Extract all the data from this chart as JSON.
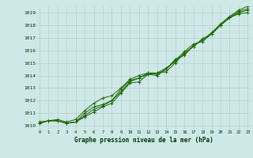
{
  "title": "Graphe pression niveau de la mer (hPa)",
  "ylabel_ticks": [
    1010,
    1011,
    1012,
    1013,
    1014,
    1015,
    1016,
    1017,
    1018,
    1019
  ],
  "xlim": [
    -0.3,
    23.3
  ],
  "ylim": [
    1009.7,
    1019.5
  ],
  "bg_color": "#cee8e8",
  "grid_color": "#b0c8c8",
  "line_color": "#1a6600",
  "series": [
    [
      1010.2,
      1010.4,
      1010.4,
      1010.2,
      1010.3,
      1010.7,
      1011.1,
      1011.5,
      1011.8,
      1012.6,
      1013.4,
      1013.5,
      1014.1,
      1014.2,
      1014.3,
      1015.0,
      1015.8,
      1016.3,
      1016.9,
      1017.3,
      1018.0,
      1018.6,
      1018.9,
      1019.0
    ],
    [
      1010.2,
      1010.4,
      1010.4,
      1010.2,
      1010.3,
      1011.0,
      1011.5,
      1011.7,
      1012.0,
      1012.9,
      1013.6,
      1013.8,
      1014.1,
      1014.0,
      1014.5,
      1015.2,
      1015.9,
      1016.5,
      1016.7,
      1017.3,
      1018.0,
      1018.6,
      1019.1,
      1019.3
    ],
    [
      1010.3,
      1010.4,
      1010.5,
      1010.3,
      1010.5,
      1011.2,
      1011.8,
      1012.2,
      1012.4,
      1013.0,
      1013.7,
      1014.0,
      1014.2,
      1014.1,
      1014.5,
      1015.3,
      1015.6,
      1016.4,
      1016.8,
      1017.4,
      1018.1,
      1018.7,
      1019.2,
      1019.5
    ],
    [
      1010.2,
      1010.4,
      1010.4,
      1010.2,
      1010.3,
      1010.8,
      1011.3,
      1011.6,
      1012.0,
      1012.7,
      1013.5,
      1013.8,
      1014.2,
      1014.2,
      1014.6,
      1015.1,
      1015.7,
      1016.3,
      1016.9,
      1017.3,
      1018.0,
      1018.6,
      1019.0,
      1019.2
    ]
  ]
}
